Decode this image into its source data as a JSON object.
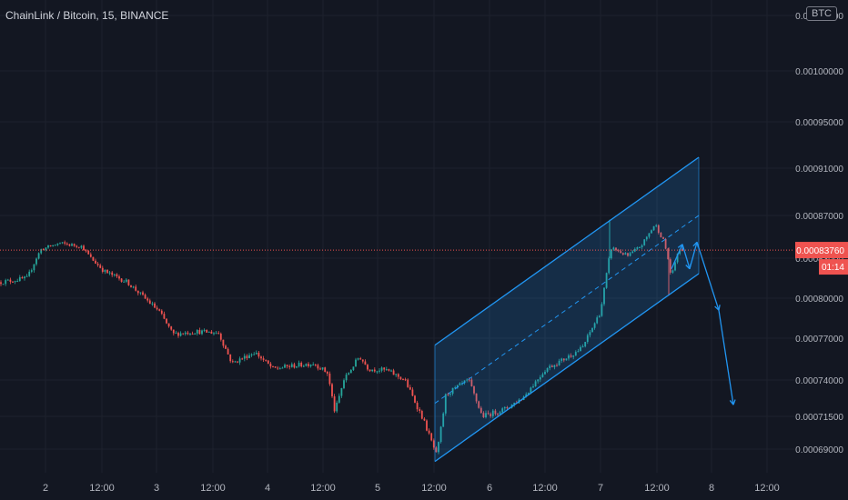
{
  "header": {
    "title": "ChainLink / Bitcoin, 15, BINANCE",
    "currency_button": "BTC"
  },
  "price_label": {
    "value": "0.00083760",
    "countdown": "01:14"
  },
  "colors": {
    "background": "#131722",
    "grid": "#1e222d",
    "up": "#26a69a",
    "down": "#ef5350",
    "channel": "#2196f3",
    "price_line": "#ef5350"
  },
  "chart_data": {
    "type": "candlestick",
    "y_tick_labels": [
      "0.00069000",
      "0.00071500",
      "0.00074000",
      "0.00077000",
      "0.00080000",
      "0.00083000",
      "0.00087000",
      "0.00091000",
      "0.00095000",
      "0.00100000",
      "0.00105000"
    ],
    "x_tick_labels": [
      "2",
      "12:00",
      "3",
      "12:00",
      "4",
      "12:00",
      "5",
      "12:00",
      "6",
      "12:00",
      "7",
      "12:00",
      "8",
      "12:00"
    ],
    "current_price": 0.0008376,
    "price_path": [
      [
        0,
        0.000812
      ],
      [
        30,
        0.000815
      ],
      [
        45,
        0.000838
      ],
      [
        65,
        0.000844
      ],
      [
        90,
        0.000841
      ],
      [
        100,
        0.00083
      ],
      [
        115,
        0.00082
      ],
      [
        140,
        0.000812
      ],
      [
        175,
        0.00079
      ],
      [
        190,
        0.000773
      ],
      [
        215,
        0.000775
      ],
      [
        240,
        0.000774
      ],
      [
        255,
        0.000752
      ],
      [
        280,
        0.00076
      ],
      [
        300,
        0.000748
      ],
      [
        320,
        0.00075
      ],
      [
        345,
        0.000752
      ],
      [
        360,
        0.000745
      ],
      [
        368,
        0.000718
      ],
      [
        378,
        0.00074
      ],
      [
        395,
        0.000757
      ],
      [
        405,
        0.000748
      ],
      [
        425,
        0.000747
      ],
      [
        445,
        0.00074
      ],
      [
        465,
        0.000713
      ],
      [
        480,
        0.000685
      ],
      [
        490,
        0.00073
      ],
      [
        515,
        0.00074
      ],
      [
        530,
        0.000715
      ],
      [
        555,
        0.00072
      ],
      [
        575,
        0.000728
      ],
      [
        600,
        0.000748
      ],
      [
        620,
        0.000755
      ],
      [
        640,
        0.000763
      ],
      [
        660,
        0.00079
      ],
      [
        672,
        0.00084
      ],
      [
        690,
        0.000832
      ],
      [
        705,
        0.000842
      ],
      [
        720,
        0.000862
      ],
      [
        730,
        0.000845
      ],
      [
        738,
        0.000815
      ],
      [
        745,
        0.000836
      ],
      [
        750,
        0.000838
      ]
    ],
    "channel": {
      "start": 0.000724,
      "end": 0.00087
    },
    "forecast_path": [
      0.000822,
      0.000843,
      0.000822,
      0.000845,
      0.000791,
      0.000723
    ]
  }
}
